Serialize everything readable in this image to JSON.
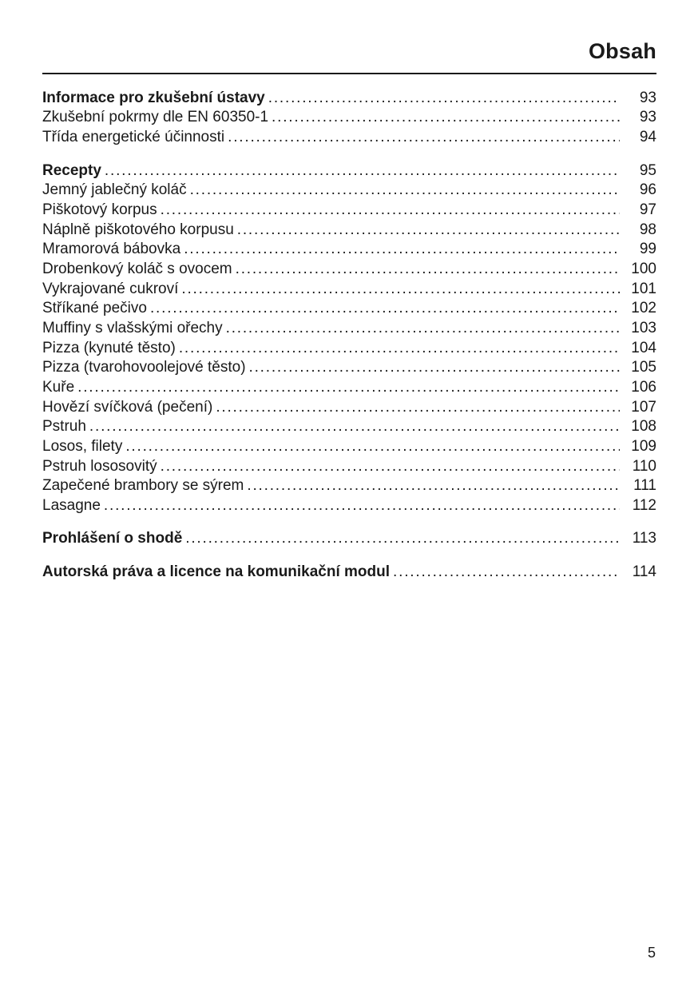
{
  "header": {
    "title": "Obsah"
  },
  "footer": {
    "page_number": "5"
  },
  "leader_char": ".",
  "colors": {
    "text": "#1a1a1a",
    "background": "#ffffff",
    "rule": "#1a1a1a"
  },
  "toc": {
    "sections": [
      {
        "entries": [
          {
            "label": "Informace pro zkušební ústavy",
            "page": "93",
            "bold": true
          },
          {
            "label": "Zkušební pokrmy dle EN 60350-1",
            "page": "93",
            "bold": false
          },
          {
            "label": "Třída energetické účinnosti",
            "page": "94",
            "bold": false
          }
        ]
      },
      {
        "entries": [
          {
            "label": "Recepty",
            "page": "95",
            "bold": true
          },
          {
            "label": "Jemný jablečný koláč",
            "page": "96",
            "bold": false
          },
          {
            "label": "Piškotový korpus",
            "page": "97",
            "bold": false
          },
          {
            "label": "Náplně piškotového korpusu",
            "page": "98",
            "bold": false
          },
          {
            "label": "Mramorová bábovka",
            "page": "99",
            "bold": false
          },
          {
            "label": "Drobenkový koláč s ovocem",
            "page": "100",
            "bold": false
          },
          {
            "label": "Vykrajované cukroví",
            "page": "101",
            "bold": false
          },
          {
            "label": "Stříkané pečivo",
            "page": "102",
            "bold": false
          },
          {
            "label": "Muffiny s vlašskými ořechy",
            "page": "103",
            "bold": false
          },
          {
            "label": "Pizza (kynuté těsto)",
            "page": "104",
            "bold": false
          },
          {
            "label": "Pizza (tvarohovoolejové těsto)",
            "page": "105",
            "bold": false
          },
          {
            "label": "Kuře",
            "page": "106",
            "bold": false
          },
          {
            "label": "Hovězí svíčková (pečení)",
            "page": "107",
            "bold": false
          },
          {
            "label": "Pstruh",
            "page": "108",
            "bold": false
          },
          {
            "label": "Losos, filety",
            "page": "109",
            "bold": false
          },
          {
            "label": "Pstruh lososovitý",
            "page": "110",
            "bold": false
          },
          {
            "label": "Zapečené brambory se sýrem",
            "page": "111",
            "bold": false
          },
          {
            "label": "Lasagne",
            "page": "112",
            "bold": false
          }
        ]
      },
      {
        "entries": [
          {
            "label": "Prohlášení o shodě",
            "page": "113",
            "bold": true
          }
        ]
      },
      {
        "entries": [
          {
            "label": "Autorská práva a licence na komunikační modul",
            "page": "114",
            "bold": true
          }
        ]
      }
    ]
  }
}
